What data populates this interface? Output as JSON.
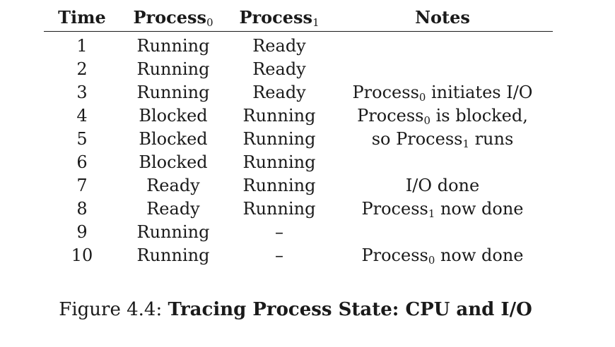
{
  "table": {
    "headers": {
      "time": "Time",
      "p0_base": "Process",
      "p0_sub": "0",
      "p1_base": "Process",
      "p1_sub": "1",
      "notes": "Notes"
    },
    "rows": [
      {
        "time": "1",
        "p0": "Running",
        "p1": "Ready",
        "note": {
          "pre": "",
          "sub": "",
          "post": ""
        }
      },
      {
        "time": "2",
        "p0": "Running",
        "p1": "Ready",
        "note": {
          "pre": "",
          "sub": "",
          "post": ""
        }
      },
      {
        "time": "3",
        "p0": "Running",
        "p1": "Ready",
        "note": {
          "pre": "Process",
          "sub": "0",
          "post": " initiates I/O"
        }
      },
      {
        "time": "4",
        "p0": "Blocked",
        "p1": "Running",
        "note": {
          "pre": "Process",
          "sub": "0",
          "post": " is blocked,"
        }
      },
      {
        "time": "5",
        "p0": "Blocked",
        "p1": "Running",
        "note": {
          "pre": "so Process",
          "sub": "1",
          "post": " runs"
        }
      },
      {
        "time": "6",
        "p0": "Blocked",
        "p1": "Running",
        "note": {
          "pre": "",
          "sub": "",
          "post": ""
        }
      },
      {
        "time": "7",
        "p0": "Ready",
        "p1": "Running",
        "note": {
          "pre": "I/O done",
          "sub": "",
          "post": ""
        }
      },
      {
        "time": "8",
        "p0": "Ready",
        "p1": "Running",
        "note": {
          "pre": "Process",
          "sub": "1",
          "post": " now done"
        }
      },
      {
        "time": "9",
        "p0": "Running",
        "p1": "–",
        "note": {
          "pre": "",
          "sub": "",
          "post": ""
        }
      },
      {
        "time": "10",
        "p0": "Running",
        "p1": "–",
        "note": {
          "pre": "Process",
          "sub": "0",
          "post": " now done"
        }
      }
    ]
  },
  "caption": {
    "label": "Figure 4.4: ",
    "title": "Tracing Process State: CPU and I/O"
  }
}
